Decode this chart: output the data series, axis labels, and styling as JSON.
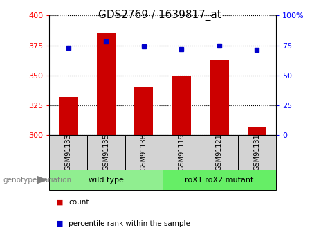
{
  "title": "GDS2769 / 1639817_at",
  "samples": [
    "GSM91133",
    "GSM91135",
    "GSM91138",
    "GSM91119",
    "GSM91121",
    "GSM91131"
  ],
  "counts": [
    332,
    385,
    340,
    350,
    363,
    307
  ],
  "percentiles": [
    73,
    78,
    74,
    72,
    75,
    71
  ],
  "groups": [
    {
      "label": "wild type",
      "color": "#90EE90",
      "start": 0,
      "end": 3
    },
    {
      "label": "roX1 roX2 mutant",
      "color": "#66EE66",
      "start": 3,
      "end": 6
    }
  ],
  "ylim_left": [
    300,
    400
  ],
  "ylim_right": [
    0,
    100
  ],
  "yticks_left": [
    300,
    325,
    350,
    375,
    400
  ],
  "yticks_right": [
    0,
    25,
    50,
    75,
    100
  ],
  "ytick_labels_right": [
    "0",
    "25",
    "50",
    "75",
    "100%"
  ],
  "bar_color": "#CC0000",
  "dot_color": "#0000CC",
  "bar_width": 0.5,
  "background_color": "#ffffff",
  "grid_color": "#000000",
  "genotype_label": "genotype/variation",
  "legend_count_label": "count",
  "legend_percentile_label": "percentile rank within the sample",
  "title_fontsize": 11,
  "tick_fontsize": 8,
  "label_fontsize": 7,
  "group_fontsize": 8,
  "legend_fontsize": 7.5
}
